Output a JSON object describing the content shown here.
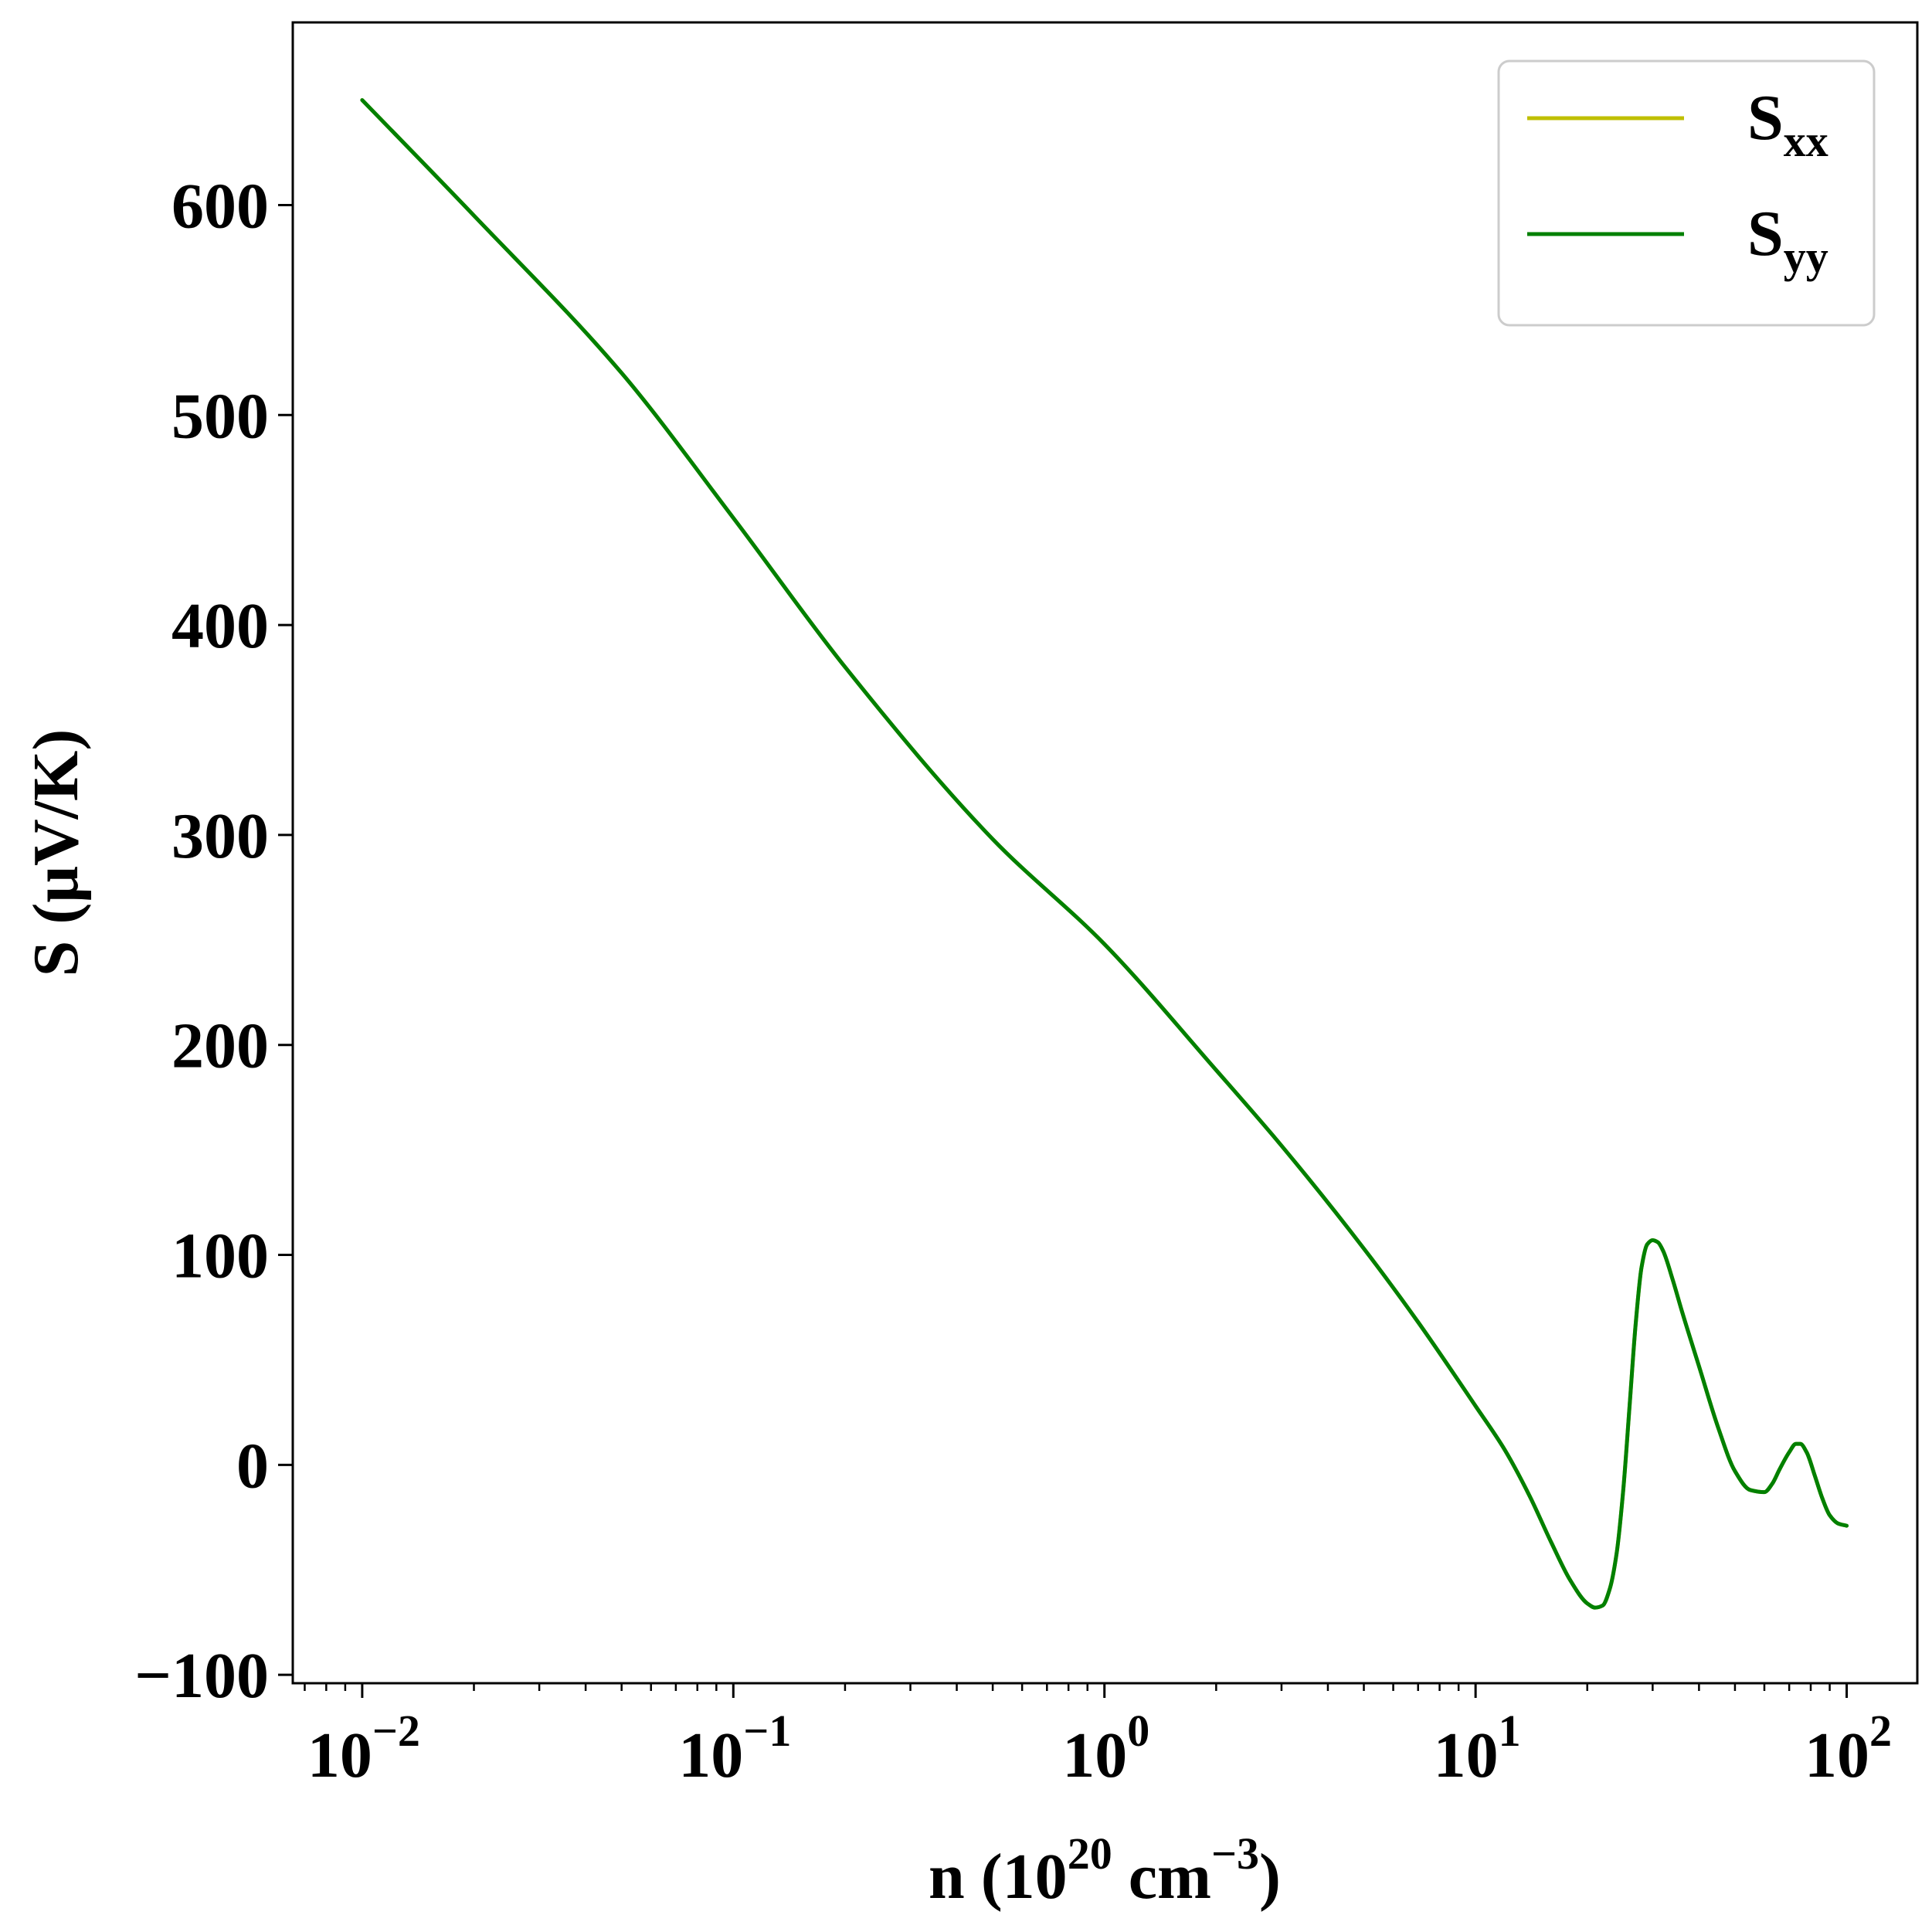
{
  "chart_data": {
    "type": "line",
    "xscale": "log",
    "xlabel": {
      "base": "n (10",
      "sup1": "20",
      "mid": " cm",
      "sup2": "−3",
      "end": ")"
    },
    "ylabel": "S (μV/K)",
    "xlim": [
      0.0065,
      155
    ],
    "ylim": [
      -104,
      687
    ],
    "xticks": [
      {
        "value": 0.01,
        "base": "10",
        "exp": "−2"
      },
      {
        "value": 0.1,
        "base": "10",
        "exp": "−1"
      },
      {
        "value": 1,
        "base": "10",
        "exp": "0"
      },
      {
        "value": 10,
        "base": "10",
        "exp": "1"
      },
      {
        "value": 100,
        "base": "10",
        "exp": "2"
      }
    ],
    "yticks": [
      {
        "value": -100,
        "label": "−100"
      },
      {
        "value": 0,
        "label": "0"
      },
      {
        "value": 100,
        "label": "100"
      },
      {
        "value": 200,
        "label": "200"
      },
      {
        "value": 300,
        "label": "300"
      },
      {
        "value": 400,
        "label": "400"
      },
      {
        "value": 500,
        "label": "500"
      },
      {
        "value": 600,
        "label": "600"
      }
    ],
    "grid": false,
    "legend_position": "top-right",
    "series": [
      {
        "name": "S",
        "subscript": "xx",
        "color": "#bfbf00",
        "x": [
          0.01,
          0.02,
          0.05,
          0.1,
          0.2,
          0.5,
          1,
          2,
          3,
          5,
          7,
          10,
          12,
          14,
          16,
          18,
          20,
          21,
          22,
          23,
          24,
          25,
          26,
          27,
          28,
          29,
          30,
          31,
          32,
          34,
          36,
          40,
          45,
          50,
          55,
          60,
          63,
          66,
          70,
          73,
          75,
          78,
          82,
          86,
          90,
          95,
          100
        ],
        "y": [
          650,
          595,
          520,
          451,
          380,
          298,
          248,
          188,
          152,
          103,
          68,
          28,
          7,
          -15,
          -37,
          -55,
          -66,
          -68,
          -67,
          -59,
          -42,
          -12,
          28,
          67,
          94,
          105,
          107,
          106,
          102,
          88,
          73,
          47,
          18,
          -3,
          -12,
          -13,
          -9,
          -2,
          6,
          10,
          10,
          6,
          -5,
          -16,
          -24,
          -28,
          -29
        ]
      },
      {
        "name": "S",
        "subscript": "yy",
        "color": "#008000",
        "x": [
          0.01,
          0.02,
          0.05,
          0.1,
          0.2,
          0.5,
          1,
          2,
          3,
          5,
          7,
          10,
          12,
          14,
          16,
          18,
          20,
          21,
          22,
          23,
          24,
          25,
          26,
          27,
          28,
          29,
          30,
          31,
          32,
          34,
          36,
          40,
          45,
          50,
          55,
          60,
          63,
          66,
          70,
          73,
          75,
          78,
          82,
          86,
          90,
          95,
          100
        ],
        "y": [
          650,
          595,
          520,
          451,
          380,
          298,
          248,
          188,
          152,
          103,
          68,
          28,
          7,
          -15,
          -37,
          -55,
          -66,
          -68,
          -67,
          -59,
          -42,
          -12,
          28,
          67,
          94,
          105,
          107,
          106,
          102,
          88,
          73,
          47,
          18,
          -3,
          -12,
          -13,
          -9,
          -2,
          6,
          10,
          10,
          6,
          -5,
          -16,
          -24,
          -28,
          -29
        ]
      }
    ]
  }
}
